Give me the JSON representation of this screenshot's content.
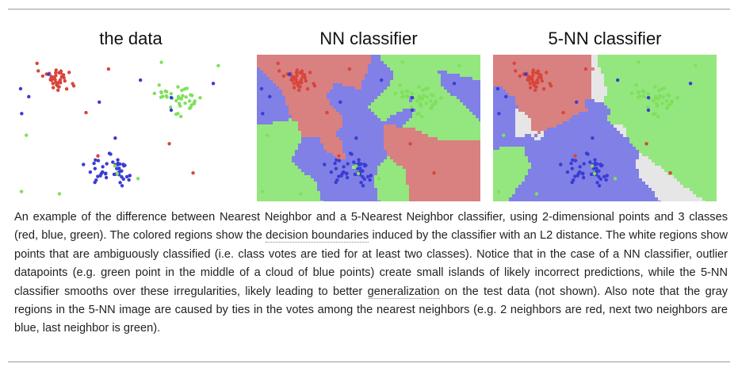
{
  "panels": [
    {
      "title": "the data"
    },
    {
      "title": "NN classifier"
    },
    {
      "title": "5-NN classifier"
    }
  ],
  "caption": {
    "part1": "An example of the difference between Nearest Neighbor and a 5-Nearest Neighbor classifier, using 2-dimensional points and 3 classes (red, blue, green). The colored regions show the ",
    "link1": "decision boundaries",
    "part2": " induced by the classifier with an L2 distance. The white regions show points that are ambiguously classified (i.e. class votes are tied for at least two classes). Notice that in the case of a NN classifier, outlier datapoints (e.g. green point in the middle of a cloud of blue points) create small islands of likely incorrect predictions, while the 5-NN classifier smooths over these irregularities, likely leading to better ",
    "link2": "generalization",
    "part3": " on the test data (not shown). Also note that the gray regions in the 5-NN image are caused by ties in the votes among the nearest neighbors (e.g. 2 neighbors are red, next two neighbors are blue, last neighbor is green)."
  },
  "colors": {
    "red_point": "#d9453a",
    "blue_point": "#3b3bd4",
    "green_point": "#7fe05a",
    "red_region": "#d98080",
    "blue_region": "#8080e6",
    "green_region": "#94e67f",
    "gray_region": "#e6e6e6"
  }
}
